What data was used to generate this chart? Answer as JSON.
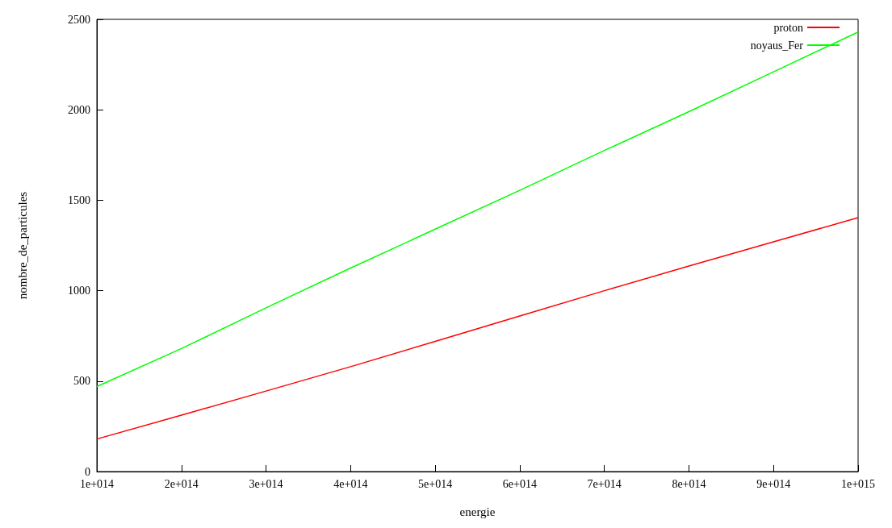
{
  "chart_data": {
    "type": "line",
    "xlabel": "energie",
    "ylabel": "nombre_de_particules",
    "x": [
      100000000000000.0,
      200000000000000.0,
      300000000000000.0,
      400000000000000.0,
      500000000000000.0,
      600000000000000.0,
      700000000000000.0,
      800000000000000.0,
      900000000000000.0,
      1000000000000000.0
    ],
    "series": [
      {
        "name": "proton",
        "color": "#ff0000",
        "values": [
          180,
          312,
          445,
          580,
          720,
          860,
          1000,
          1136,
          1270,
          1404
        ]
      },
      {
        "name": "noyaus_Fer",
        "color": "#00ff00",
        "values": [
          470,
          680,
          905,
          1125,
          1340,
          1555,
          1775,
          1990,
          2210,
          2430
        ]
      }
    ],
    "xlim": [
      100000000000000.0,
      1000000000000000.0
    ],
    "xticks": [
      {
        "value": 100000000000000.0,
        "label": "1e+014"
      },
      {
        "value": 200000000000000.0,
        "label": "2e+014"
      },
      {
        "value": 300000000000000.0,
        "label": "3e+014"
      },
      {
        "value": 400000000000000.0,
        "label": "4e+014"
      },
      {
        "value": 500000000000000.0,
        "label": "5e+014"
      },
      {
        "value": 600000000000000.0,
        "label": "6e+014"
      },
      {
        "value": 700000000000000.0,
        "label": "7e+014"
      },
      {
        "value": 800000000000000.0,
        "label": "8e+014"
      },
      {
        "value": 900000000000000.0,
        "label": "9e+014"
      },
      {
        "value": 1000000000000000.0,
        "label": "1e+015"
      }
    ],
    "ylim": [
      0,
      2500
    ],
    "yticks": [
      0,
      500,
      1000,
      1500,
      2000,
      2500
    ],
    "grid": false,
    "legend": "top right",
    "marker": "none",
    "line_style": "solid"
  }
}
